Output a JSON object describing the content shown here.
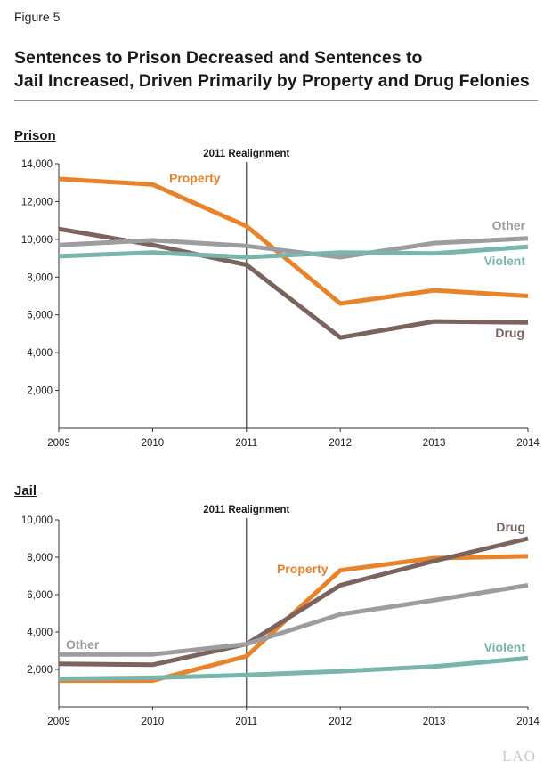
{
  "figure_label": "Figure 5",
  "title_line1": "Sentences to Prison Decreased and Sentences to",
  "title_line2": "Jail Increased, Driven Primarily by Property and Drug Felonies",
  "logo_text": "LAO",
  "colors": {
    "property": "#e8822b",
    "drug": "#7b645e",
    "other": "#9d9d9f",
    "violent": "#79b5aa"
  },
  "chart_data": [
    {
      "type": "line",
      "title": "Prison",
      "x": [
        "2009",
        "2010",
        "2011",
        "2012",
        "2013",
        "2014"
      ],
      "ylim": [
        0,
        14000
      ],
      "yticks": [
        2000,
        4000,
        6000,
        8000,
        10000,
        12000,
        14000
      ],
      "ytick_labels": [
        "2,000",
        "4,000",
        "6,000",
        "8,000",
        "10,000",
        "12,000",
        "14,000"
      ],
      "annotation": {
        "label": "2011 Realignment",
        "x": "2011"
      },
      "series": [
        {
          "name": "Property",
          "color_key": "property",
          "values": [
            13200,
            12900,
            10700,
            6600,
            7300,
            7000
          ]
        },
        {
          "name": "Drug",
          "color_key": "drug",
          "values": [
            10550,
            9700,
            8650,
            4800,
            5650,
            5600
          ]
        },
        {
          "name": "Other",
          "color_key": "other",
          "values": [
            9700,
            9950,
            9650,
            9050,
            9800,
            10050
          ]
        },
        {
          "name": "Violent",
          "color_key": "violent",
          "values": [
            9100,
            9300,
            9050,
            9300,
            9250,
            9600
          ]
        }
      ]
    },
    {
      "type": "line",
      "title": "Jail",
      "x": [
        "2009",
        "2010",
        "2011",
        "2012",
        "2013",
        "2014"
      ],
      "ylim": [
        0,
        10000
      ],
      "yticks": [
        2000,
        4000,
        6000,
        8000,
        10000
      ],
      "ytick_labels": [
        "2,000",
        "4,000",
        "6,000",
        "8,000",
        "10,000"
      ],
      "annotation": {
        "label": "2011 Realignment",
        "x": "2011"
      },
      "series": [
        {
          "name": "Property",
          "color_key": "property",
          "values": [
            1400,
            1400,
            2700,
            7300,
            7950,
            8050
          ]
        },
        {
          "name": "Drug",
          "color_key": "drug",
          "values": [
            2300,
            2250,
            3350,
            6500,
            7800,
            9000
          ]
        },
        {
          "name": "Other",
          "color_key": "other",
          "values": [
            2800,
            2800,
            3350,
            4950,
            5700,
            6500
          ]
        },
        {
          "name": "Violent",
          "color_key": "violent",
          "values": [
            1500,
            1550,
            1700,
            1900,
            2150,
            2600
          ]
        }
      ]
    }
  ]
}
